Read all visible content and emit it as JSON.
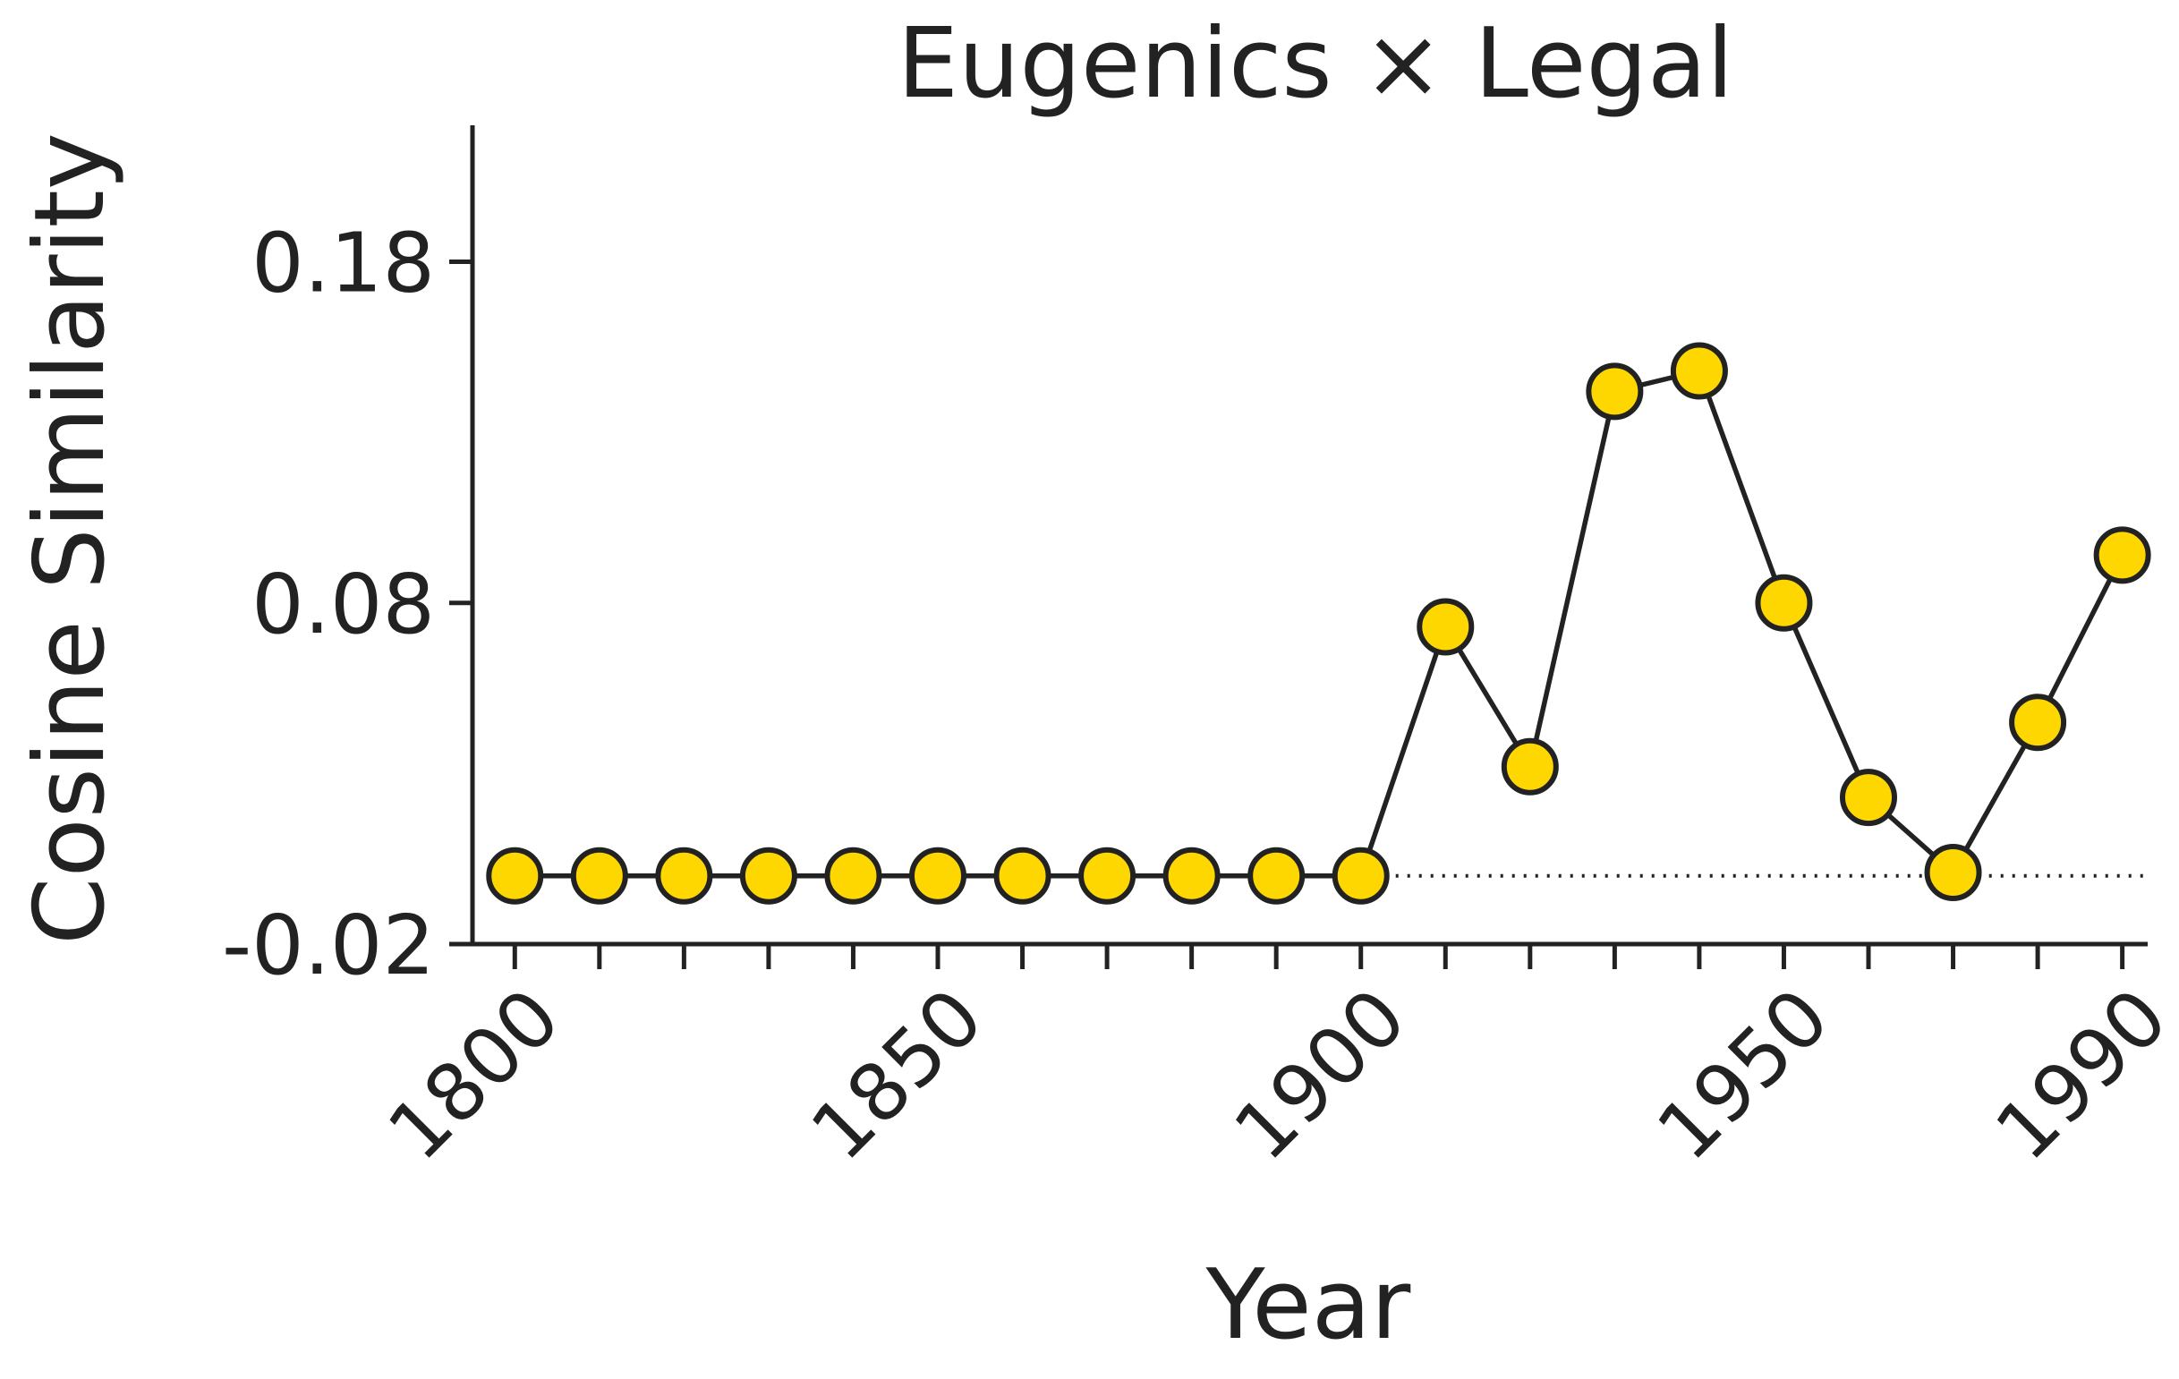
{
  "chart_data": {
    "type": "line",
    "title": "Eugenics × Legal",
    "xlabel": "Year",
    "ylabel": "Cosine Similarity",
    "xlim": [
      1795,
      1993
    ],
    "ylim": [
      -0.02,
      0.22
    ],
    "x_ticks": [
      1800,
      1810,
      1820,
      1830,
      1840,
      1850,
      1860,
      1870,
      1880,
      1890,
      1900,
      1910,
      1920,
      1930,
      1940,
      1950,
      1960,
      1970,
      1980,
      1990
    ],
    "x_tick_labels": [
      {
        "value": 1800,
        "label": "1800"
      },
      {
        "value": 1850,
        "label": "1850"
      },
      {
        "value": 1900,
        "label": "1900"
      },
      {
        "value": 1950,
        "label": "1950"
      },
      {
        "value": 1990,
        "label": "1990"
      }
    ],
    "y_ticks": [
      {
        "value": -0.02,
        "label": "-0.02"
      },
      {
        "value": 0.08,
        "label": "0.08"
      },
      {
        "value": 0.18,
        "label": "0.18"
      }
    ],
    "x": [
      1800,
      1810,
      1820,
      1830,
      1840,
      1850,
      1860,
      1870,
      1880,
      1890,
      1900,
      1910,
      1920,
      1930,
      1940,
      1950,
      1960,
      1970,
      1980,
      1990
    ],
    "series": [
      {
        "values": [
          0.0,
          0.0,
          0.0,
          0.0,
          0.0,
          0.0,
          0.0,
          0.0,
          0.0,
          0.0,
          0.0,
          0.073,
          0.032,
          0.142,
          0.148,
          0.08,
          0.023,
          0.001,
          0.045,
          0.094
        ],
        "color": "#FFD700",
        "edge_color": "#222222"
      }
    ],
    "reference_line": {
      "y": 0.0,
      "style": "dotted",
      "x_start": 1900
    },
    "grid": false,
    "legend": "none"
  }
}
